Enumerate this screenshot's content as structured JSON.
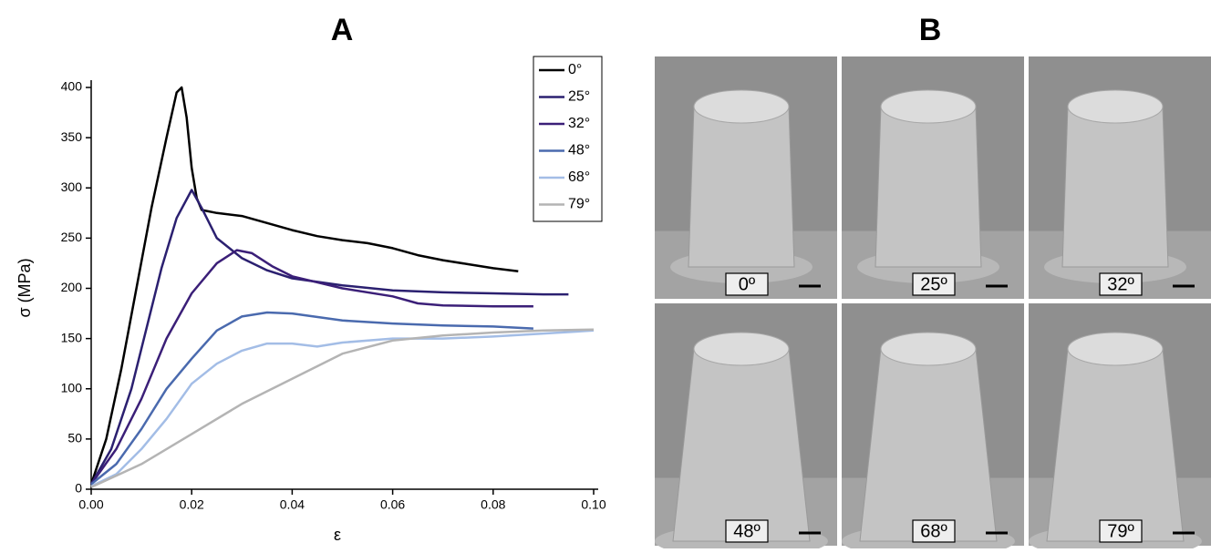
{
  "chart_data": {
    "type": "line",
    "title": "A",
    "x_label": "ε",
    "y_label": "σ (MPa)",
    "xlim": [
      0,
      0.1
    ],
    "ylim": [
      0,
      400
    ],
    "xticks": [
      {
        "value": 0,
        "label": "0.00"
      },
      0.02,
      0.04,
      0.06,
      0.08,
      {
        "value": 0.1,
        "label": "0.10"
      }
    ],
    "yticks": [
      0,
      50,
      100,
      150,
      200,
      250,
      300,
      350,
      400
    ],
    "legend": "top-right",
    "series": [
      {
        "name": "0°",
        "color": "#000000",
        "x": [
          0,
          0.003,
          0.006,
          0.009,
          0.012,
          0.015,
          0.017,
          0.018,
          0.019,
          0.02,
          0.021,
          0.022,
          0.025,
          0.03,
          0.035,
          0.04,
          0.045,
          0.05,
          0.055,
          0.06,
          0.065,
          0.07,
          0.075,
          0.08,
          0.085
        ],
        "values": [
          5,
          50,
          120,
          200,
          280,
          350,
          395,
          400,
          370,
          320,
          290,
          278,
          275,
          272,
          265,
          258,
          252,
          248,
          245,
          240,
          233,
          228,
          224,
          220,
          217
        ]
      },
      {
        "name": "25°",
        "color": "#2b2070",
        "x": [
          0,
          0.004,
          0.008,
          0.011,
          0.014,
          0.017,
          0.02,
          0.022,
          0.025,
          0.03,
          0.035,
          0.04,
          0.05,
          0.06,
          0.07,
          0.08,
          0.09,
          0.095
        ],
        "values": [
          5,
          40,
          100,
          160,
          220,
          270,
          298,
          280,
          250,
          230,
          218,
          210,
          203,
          198,
          196,
          195,
          194,
          194
        ]
      },
      {
        "name": "32°",
        "color": "#3b1f78",
        "x": [
          0,
          0.005,
          0.01,
          0.015,
          0.02,
          0.025,
          0.029,
          0.032,
          0.036,
          0.04,
          0.05,
          0.06,
          0.065,
          0.07,
          0.08,
          0.088
        ],
        "values": [
          5,
          40,
          90,
          150,
          195,
          225,
          238,
          235,
          222,
          212,
          200,
          192,
          185,
          183,
          182,
          182
        ]
      },
      {
        "name": "48°",
        "color": "#4a6aae",
        "x": [
          0,
          0.005,
          0.01,
          0.015,
          0.02,
          0.025,
          0.03,
          0.035,
          0.04,
          0.05,
          0.06,
          0.07,
          0.08,
          0.088
        ],
        "values": [
          5,
          25,
          60,
          100,
          130,
          158,
          172,
          176,
          175,
          168,
          165,
          163,
          162,
          160
        ]
      },
      {
        "name": "68°",
        "color": "#a3bde6",
        "x": [
          0,
          0.005,
          0.01,
          0.015,
          0.02,
          0.025,
          0.03,
          0.035,
          0.04,
          0.045,
          0.05,
          0.06,
          0.07,
          0.08,
          0.09,
          0.1
        ],
        "values": [
          3,
          15,
          40,
          70,
          105,
          125,
          138,
          145,
          145,
          142,
          146,
          150,
          150,
          152,
          155,
          158
        ]
      },
      {
        "name": "79°",
        "color": "#b4b4b4",
        "x": [
          0,
          0.01,
          0.02,
          0.03,
          0.04,
          0.05,
          0.06,
          0.07,
          0.08,
          0.09,
          0.1
        ],
        "values": [
          2,
          25,
          55,
          85,
          110,
          135,
          148,
          153,
          156,
          158,
          159
        ]
      }
    ]
  },
  "panel_b": {
    "title": "B",
    "images": [
      {
        "label": "0º"
      },
      {
        "label": "25º"
      },
      {
        "label": "32º"
      },
      {
        "label": "48º"
      },
      {
        "label": "68º"
      },
      {
        "label": "79º"
      }
    ]
  }
}
